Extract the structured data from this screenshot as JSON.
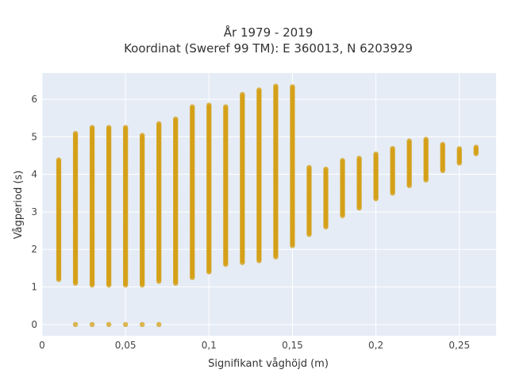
{
  "chart_data": {
    "type": "scatter",
    "title_lines": [
      "År 1979 - 2019",
      "Koordinat (Sweref 99 TM): E 360013, N 6203929"
    ],
    "xlabel": "Signifikant våghöjd (m)",
    "ylabel": "Vågperiod (s)",
    "xlim": [
      0,
      0.272
    ],
    "ylim": [
      -0.3,
      6.7
    ],
    "x_ticks": [
      0,
      0.05,
      0.1,
      0.15,
      0.2,
      0.25
    ],
    "x_tick_labels": [
      "0",
      "0,05",
      "0,1",
      "0,15",
      "0,2",
      "0,25"
    ],
    "y_ticks": [
      0,
      1,
      2,
      3,
      4,
      5,
      6
    ],
    "y_tick_labels": [
      "0",
      "1",
      "2",
      "3",
      "4",
      "5",
      "6"
    ],
    "grid": true,
    "marker_color": "#D4A017",
    "background_color": "#E5ECF6",
    "columns": [
      {
        "x": 0.01,
        "ymin": 1.2,
        "ymax": 4.4
      },
      {
        "x": 0.02,
        "ymin": 1.1,
        "ymax": 5.1,
        "zero": true
      },
      {
        "x": 0.03,
        "ymin": 1.05,
        "ymax": 5.25,
        "zero": true
      },
      {
        "x": 0.04,
        "ymin": 1.05,
        "ymax": 5.25,
        "zero": true
      },
      {
        "x": 0.05,
        "ymin": 1.05,
        "ymax": 5.25,
        "zero": true
      },
      {
        "x": 0.06,
        "ymin": 1.05,
        "ymax": 5.05,
        "zero": true
      },
      {
        "x": 0.07,
        "ymin": 1.15,
        "ymax": 5.35,
        "zero": true
      },
      {
        "x": 0.08,
        "ymin": 1.1,
        "ymax": 5.5
      },
      {
        "x": 0.09,
        "ymin": 1.25,
        "ymax": 5.8
      },
      {
        "x": 0.1,
        "ymin": 1.4,
        "ymax": 5.85
      },
      {
        "x": 0.11,
        "ymin": 1.6,
        "ymax": 5.8
      },
      {
        "x": 0.12,
        "ymin": 1.65,
        "ymax": 6.15
      },
      {
        "x": 0.13,
        "ymin": 1.7,
        "ymax": 6.25
      },
      {
        "x": 0.14,
        "ymin": 1.8,
        "ymax": 6.35
      },
      {
        "x": 0.15,
        "ymin": 2.1,
        "ymax": 6.35
      },
      {
        "x": 0.16,
        "ymin": 2.4,
        "ymax": 4.2
      },
      {
        "x": 0.17,
        "ymin": 2.6,
        "ymax": 4.15
      },
      {
        "x": 0.18,
        "ymin": 2.9,
        "ymax": 4.4
      },
      {
        "x": 0.19,
        "ymin": 3.1,
        "ymax": 4.45
      },
      {
        "x": 0.2,
        "ymin": 3.35,
        "ymax": 4.55
      },
      {
        "x": 0.21,
        "ymin": 3.5,
        "ymax": 4.7
      },
      {
        "x": 0.22,
        "ymin": 3.7,
        "ymax": 4.9
      },
      {
        "x": 0.23,
        "ymin": 3.85,
        "ymax": 4.95
      },
      {
        "x": 0.24,
        "ymin": 4.1,
        "ymax": 4.8
      },
      {
        "x": 0.25,
        "ymin": 4.3,
        "ymax": 4.7
      },
      {
        "x": 0.26,
        "ymin": 4.55,
        "ymax": 4.75
      }
    ]
  }
}
